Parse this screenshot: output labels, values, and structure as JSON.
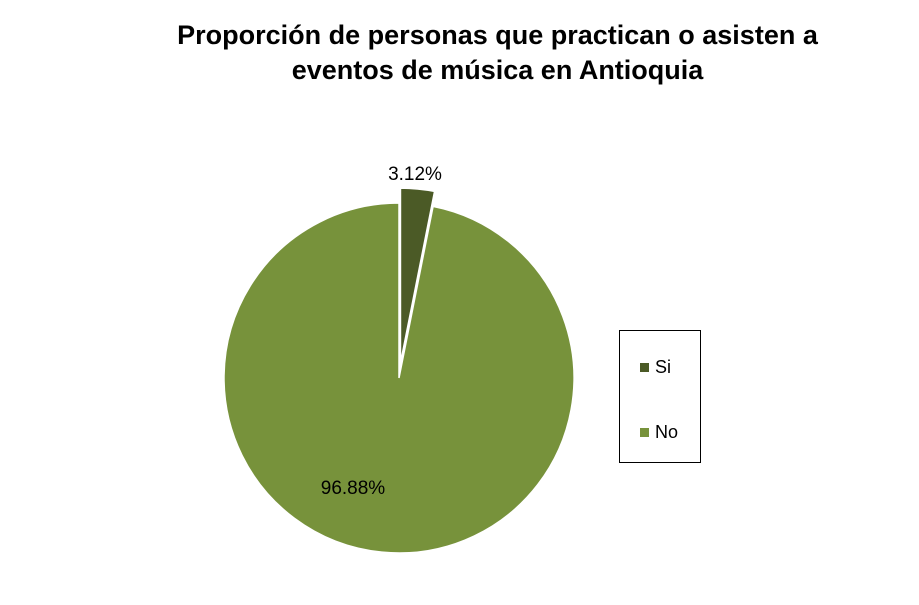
{
  "chart_data": {
    "type": "pie",
    "title": "Proporción de personas que practican o asisten a eventos de música en Antioquia",
    "title_lines": [
      "Proporción de personas que practican o asisten a",
      "eventos de música en Antioquia"
    ],
    "categories": [
      "Si",
      "No"
    ],
    "values": [
      3.12,
      96.88
    ],
    "data_labels": [
      "3.12%",
      "96.88%"
    ],
    "colors": [
      "#4b5a26",
      "#77923b"
    ],
    "exploded": [
      "Si"
    ],
    "legend_position": "right"
  }
}
